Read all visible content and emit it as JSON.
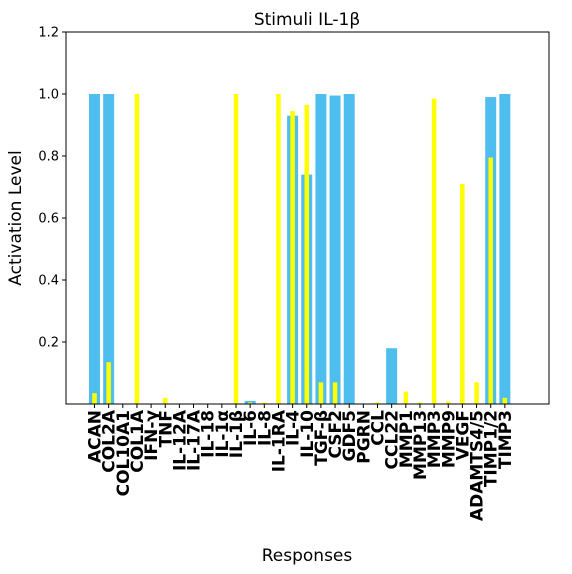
{
  "chart_data": {
    "type": "bar",
    "title": "Stimuli IL-1β",
    "xlabel": "Responses",
    "ylabel": "Activation Level",
    "ylim": [
      0,
      1.2
    ],
    "yticks": [
      "0.2",
      "0.4",
      "0.6",
      "0.8",
      "1.0",
      "1.2"
    ],
    "categories": [
      "ACAN",
      "COL2A",
      "COL10A1",
      "COL1A",
      "IFN-γ",
      "TNF",
      "IL-12A",
      "IL-17A",
      "IL-18",
      "IL-1α",
      "IL-1β",
      "IL-6",
      "IL-8",
      "IL-1RA",
      "IL-4",
      "IL-10",
      "TGF-β",
      "CSF2",
      "GDF5",
      "PGRN",
      "CCL",
      "CCL22",
      "MMP1",
      "MMP13",
      "MMP3",
      "MMP9",
      "VEGF",
      "ADAMTS4/5",
      "TIMP1/2",
      "TIMP3"
    ],
    "series": [
      {
        "color": "#4dbeee",
        "values": [
          1.0,
          1.0,
          0,
          0,
          0,
          0,
          0,
          0,
          0,
          0,
          0,
          0.01,
          0,
          0,
          0.93,
          0.74,
          1.0,
          0.995,
          1.0,
          0,
          0,
          0.18,
          0,
          0,
          0,
          0,
          0,
          0,
          0.99,
          1.0
        ]
      },
      {
        "color": "#ffff00",
        "values": [
          0.035,
          0.135,
          0,
          1.0,
          0,
          0.02,
          0,
          0,
          0,
          0,
          1.0,
          0.005,
          0.005,
          1.0,
          0.945,
          0.965,
          0.07,
          0.07,
          0,
          0,
          0.005,
          0,
          0.04,
          0.005,
          0.985,
          0.008,
          0.71,
          0.07,
          0.795,
          0.02
        ]
      }
    ]
  }
}
